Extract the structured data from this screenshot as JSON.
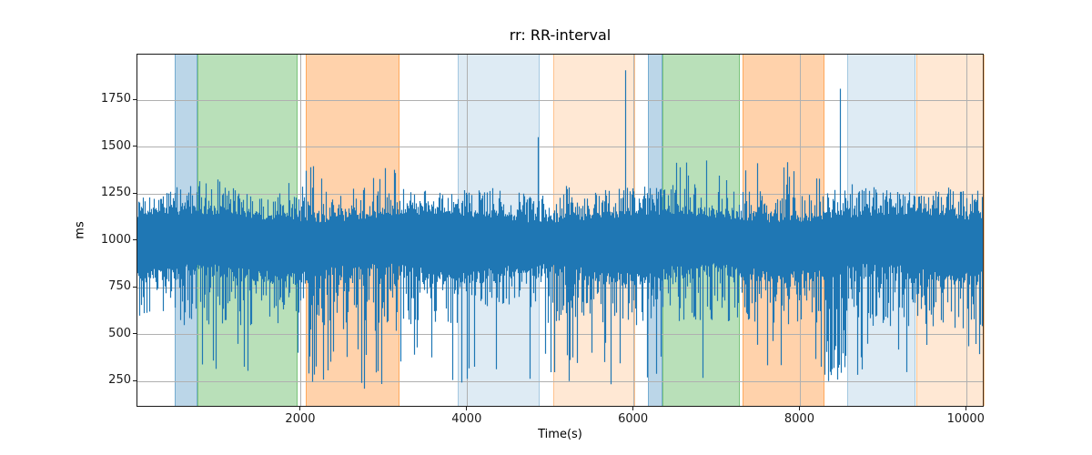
{
  "chart_data": {
    "type": "line",
    "title": "rr: RR-interval",
    "xlabel": "Time(s)",
    "ylabel": "ms",
    "series_name": "rr",
    "xlim": [
      31,
      10216
    ],
    "ylim": [
      110,
      1994
    ],
    "xticks": [
      2000,
      4000,
      6000,
      8000,
      10000
    ],
    "yticks": [
      250,
      500,
      750,
      1000,
      1250,
      1500,
      1750
    ],
    "grid": true,
    "legend": false,
    "line_color": "#1f77b4",
    "grid_color": "#b0b0b0",
    "spine_color": "#1a1a1a",
    "baseline_mean_ms": 1000,
    "typical_band_ms": [
      560,
      1250
    ],
    "observed_min_ms": 205,
    "observed_max_ms": 1910,
    "bands": [
      {
        "x0": 479,
        "x1": 748,
        "color": "rgba(31,119,180,0.30)",
        "edge": "rgba(31,119,180,0.45)"
      },
      {
        "x0": 748,
        "x1": 1955,
        "color": "rgba(44,160,44,0.33)",
        "edge": "rgba(44,160,44,0.45)"
      },
      {
        "x0": 2055,
        "x1": 3180,
        "color": "rgba(255,127,14,0.35)",
        "edge": "rgba(255,127,14,0.50)"
      },
      {
        "x0": 3880,
        "x1": 4865,
        "color": "rgba(31,119,180,0.15)",
        "edge": "rgba(31,119,180,0.30)"
      },
      {
        "x0": 5030,
        "x1": 6015,
        "color": "rgba(255,127,14,0.18)",
        "edge": "rgba(255,127,14,0.35)"
      },
      {
        "x0": 6170,
        "x1": 6343,
        "color": "rgba(31,119,180,0.30)",
        "edge": "rgba(31,119,180,0.45)"
      },
      {
        "x0": 6343,
        "x1": 7273,
        "color": "rgba(44,160,44,0.33)",
        "edge": "rgba(44,160,44,0.45)"
      },
      {
        "x0": 7305,
        "x1": 8290,
        "color": "rgba(255,127,14,0.35)",
        "edge": "rgba(255,127,14,0.50)"
      },
      {
        "x0": 8565,
        "x1": 9385,
        "color": "rgba(31,119,180,0.15)",
        "edge": "rgba(31,119,180,0.30)"
      },
      {
        "x0": 9395,
        "x1": 10216,
        "color": "rgba(255,127,14,0.18)",
        "edge": "rgba(255,127,14,0.35)"
      }
    ],
    "signal": {
      "seed": 1337,
      "core": {
        "top_base": 1118,
        "top_jitter": 52,
        "bottom_base": 862,
        "bottom_jitter": 78
      },
      "segments": [
        {
          "x0": 31,
          "x1": 479,
          "deep_rate": 0.02,
          "deep_min": 390,
          "hair_bottom": 545,
          "hair_rate": 0.42,
          "up_rate": 0.03,
          "up_max": 1250
        },
        {
          "x0": 479,
          "x1": 748,
          "deep_rate": 0.025,
          "deep_min": 330,
          "hair_bottom": 545,
          "hair_rate": 0.42,
          "up_rate": 0.03,
          "up_max": 1260
        },
        {
          "x0": 748,
          "x1": 1955,
          "deep_rate": 0.035,
          "deep_min": 270,
          "hair_bottom": 550,
          "hair_rate": 0.45,
          "up_rate": 0.06,
          "up_max": 1345
        },
        {
          "x0": 1955,
          "x1": 2055,
          "deep_rate": 0.05,
          "deep_min": 350,
          "hair_bottom": 550,
          "hair_rate": 0.42,
          "up_rate": 0.06,
          "up_max": 1340
        },
        {
          "x0": 2055,
          "x1": 3180,
          "deep_rate": 0.14,
          "deep_min": 210,
          "hair_bottom": 520,
          "hair_rate": 0.5,
          "up_rate": 0.07,
          "up_max": 1400
        },
        {
          "x0": 3180,
          "x1": 3880,
          "deep_rate": 0.07,
          "deep_min": 250,
          "hair_bottom": 540,
          "hair_rate": 0.45,
          "up_rate": 0.05,
          "up_max": 1310
        },
        {
          "x0": 3880,
          "x1": 4865,
          "deep_rate": 0.05,
          "deep_min": 230,
          "hair_bottom": 645,
          "hair_rate": 0.42,
          "up_rate": 0.04,
          "up_max": 1285
        },
        {
          "x0": 4865,
          "x1": 5030,
          "deep_rate": 0.09,
          "deep_min": 210,
          "hair_bottom": 560,
          "hair_rate": 0.42,
          "up_rate": 0.05,
          "up_max": 1300
        },
        {
          "x0": 5030,
          "x1": 6015,
          "deep_rate": 0.09,
          "deep_min": 230,
          "hair_bottom": 560,
          "hair_rate": 0.45,
          "up_rate": 0.05,
          "up_max": 1310
        },
        {
          "x0": 6015,
          "x1": 6343,
          "deep_rate": 0.09,
          "deep_min": 215,
          "hair_bottom": 550,
          "hair_rate": 0.45,
          "up_rate": 0.05,
          "up_max": 1320
        },
        {
          "x0": 6343,
          "x1": 7273,
          "deep_rate": 0.05,
          "deep_min": 260,
          "hair_bottom": 550,
          "hair_rate": 0.45,
          "up_rate": 0.1,
          "up_max": 1455
        },
        {
          "x0": 7273,
          "x1": 8290,
          "deep_rate": 0.06,
          "deep_min": 255,
          "hair_bottom": 545,
          "hair_rate": 0.45,
          "up_rate": 0.1,
          "up_max": 1435
        },
        {
          "x0": 8290,
          "x1": 8560,
          "deep_rate": 0.6,
          "deep_min": 245,
          "hair_bottom": 430,
          "hair_rate": 0.3,
          "up_rate": 0.04,
          "up_max": 1300
        },
        {
          "x0": 8560,
          "x1": 9385,
          "deep_rate": 0.08,
          "deep_min": 260,
          "hair_bottom": 545,
          "hair_rate": 0.45,
          "up_rate": 0.05,
          "up_max": 1320
        },
        {
          "x0": 9385,
          "x1": 10216,
          "deep_rate": 0.045,
          "deep_min": 390,
          "hair_bottom": 532,
          "hair_rate": 0.55,
          "up_rate": 0.04,
          "up_max": 1270
        }
      ],
      "spikes": [
        {
          "x": 4845,
          "y": 1553
        },
        {
          "x": 5905,
          "y": 1910
        },
        {
          "x": 8487,
          "y": 1812
        }
      ]
    }
  }
}
